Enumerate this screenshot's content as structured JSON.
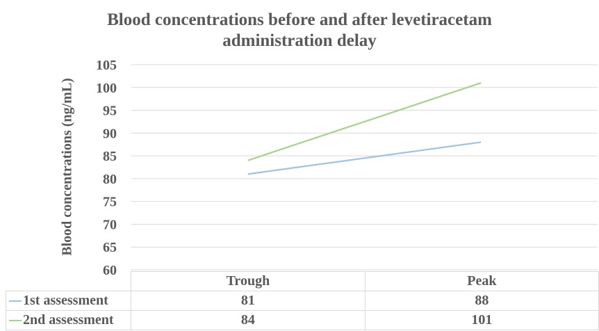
{
  "chart_data": {
    "type": "line",
    "title_lines": [
      "Blood concentrations before and after levetiracetam",
      "administration delay"
    ],
    "xlabel": "",
    "ylabel": "Blood concentrations (ng/mL)",
    "categories": [
      "Trough",
      "Peak"
    ],
    "ylim": [
      60,
      105
    ],
    "yticks": [
      60,
      65,
      70,
      75,
      80,
      85,
      90,
      95,
      100,
      105
    ],
    "grid": true,
    "legend": "data-table-bottom",
    "series": [
      {
        "name": "1st assessment",
        "values": [
          81,
          88
        ],
        "color": "#9dc3e6"
      },
      {
        "name": "2nd assessment",
        "values": [
          84,
          101
        ],
        "color": "#a9d18e"
      }
    ]
  }
}
